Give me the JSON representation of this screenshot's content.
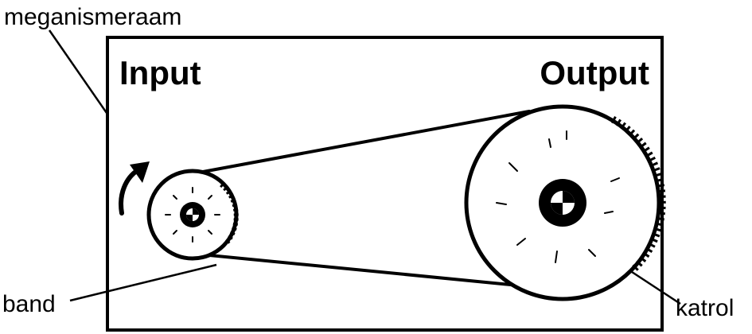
{
  "diagram": {
    "labels": {
      "mechanism": "meganismeraam",
      "input": "Input",
      "output": "Output",
      "belt": "band",
      "pulley": "katrol"
    },
    "colors": {
      "ink": "#000000",
      "paper": "#ffffff"
    }
  }
}
